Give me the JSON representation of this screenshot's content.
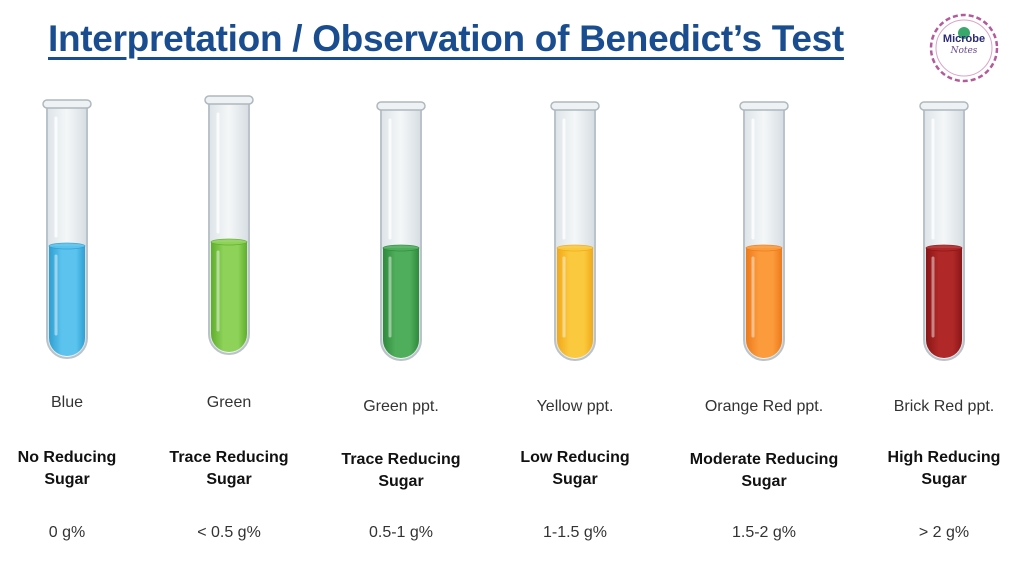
{
  "title": "Interpretation / Observation of Benedict’s Test",
  "logo": {
    "name": "Microbe",
    "sub": "Notes"
  },
  "tubes": [
    {
      "color_label": "Blue",
      "result_line1": "No Reducing",
      "result_line2": "Sugar",
      "amount": "0 g%",
      "liquid_color": "#5bc3ee",
      "liquid_dark": "#2e9fd2"
    },
    {
      "color_label": "Green",
      "result_line1": "Trace Reducing",
      "result_line2": "Sugar",
      "amount": "< 0.5 g%",
      "liquid_color": "#8ed25a",
      "liquid_dark": "#5fae2c"
    },
    {
      "color_label": "Green ppt.",
      "result_line1": "Trace Reducing",
      "result_line2": "Sugar",
      "amount": "0.5-1 g%",
      "liquid_color": "#4fae5c",
      "liquid_dark": "#2f8a3c"
    },
    {
      "color_label": "Yellow ppt.",
      "result_line1": "Low Reducing",
      "result_line2": "Sugar",
      "amount": "1-1.5 g%",
      "liquid_color": "#fbc93d",
      "liquid_dark": "#f0a91a"
    },
    {
      "color_label": "Orange Red ppt.",
      "result_line1": "Moderate Reducing",
      "result_line2": "Sugar",
      "amount": "1.5-2 g%",
      "liquid_color": "#fb9b3c",
      "liquid_dark": "#ec7a1a"
    },
    {
      "color_label": "Brick Red ppt.",
      "result_line1": "High Reducing",
      "result_line2": "Sugar",
      "amount": "> 2 g%",
      "liquid_color": "#b02828",
      "liquid_dark": "#8a1616"
    }
  ]
}
